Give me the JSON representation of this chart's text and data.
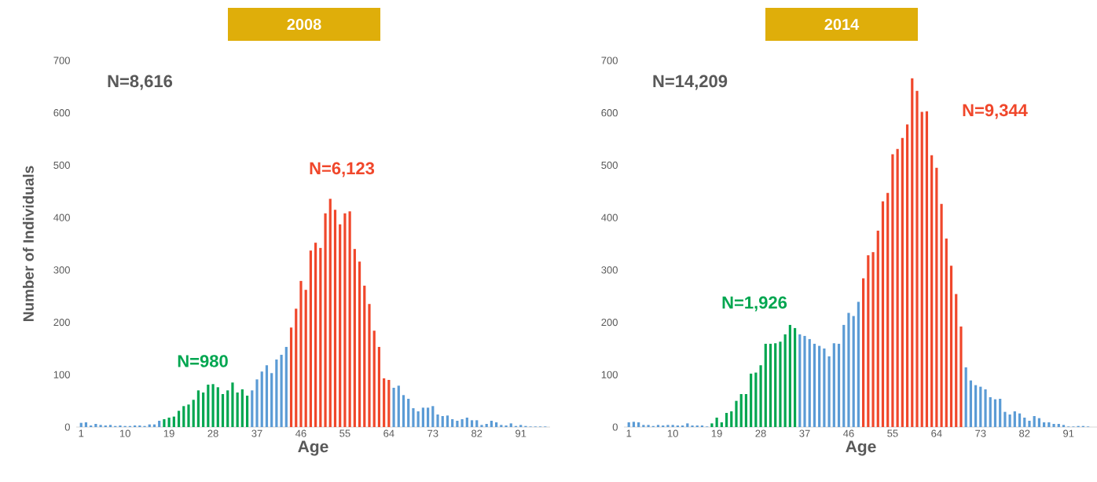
{
  "chart_data": [
    {
      "type": "bar",
      "title": "2008",
      "xlabel": "Age",
      "ylabel": "Number of Individuals",
      "xlim": [
        0,
        97
      ],
      "xticks": [
        1,
        10,
        19,
        28,
        37,
        46,
        55,
        64,
        73,
        82,
        91
      ],
      "ylim": [
        0,
        700
      ],
      "yticks": [
        0,
        100,
        200,
        300,
        400,
        500,
        600,
        700
      ],
      "annotations": [
        "N=8,616",
        "N=6,123",
        "N=980"
      ],
      "series": [
        {
          "color": "#5b9bd5",
          "x": [
            1,
            2,
            3,
            4,
            5,
            6,
            7,
            8,
            9,
            10,
            11,
            12,
            13,
            14,
            15,
            16,
            17,
            36,
            37,
            38,
            39,
            40,
            41,
            42,
            43,
            65,
            66,
            67,
            68,
            69,
            70,
            71,
            72,
            73,
            74,
            75,
            76,
            77,
            78,
            79,
            80,
            81,
            82,
            83,
            84,
            85,
            86,
            87,
            88,
            89,
            90,
            91,
            92,
            93,
            94,
            95,
            96
          ],
          "values": [
            8,
            9,
            3,
            6,
            4,
            3,
            4,
            2,
            3,
            2,
            2,
            3,
            3,
            2,
            5,
            5,
            12,
            70,
            91,
            106,
            118,
            103,
            129,
            138,
            153,
            75,
            79,
            61,
            54,
            36,
            30,
            37,
            37,
            40,
            24,
            21,
            22,
            15,
            12,
            15,
            18,
            13,
            13,
            4,
            6,
            12,
            9,
            4,
            3,
            7,
            2,
            4,
            2,
            1,
            1,
            1,
            1
          ]
        },
        {
          "color": "#00a650",
          "x": [
            18,
            19,
            20,
            21,
            22,
            23,
            24,
            25,
            26,
            27,
            28,
            29,
            30,
            31,
            32,
            33,
            34,
            35
          ],
          "values": [
            15,
            18,
            20,
            31,
            40,
            43,
            52,
            70,
            66,
            81,
            82,
            76,
            63,
            70,
            85,
            66,
            72,
            60
          ]
        },
        {
          "color": "#f0472b",
          "x": [
            44,
            45,
            46,
            47,
            48,
            49,
            50,
            51,
            52,
            53,
            54,
            55,
            56,
            57,
            58,
            59,
            60,
            61,
            62,
            63,
            64
          ],
          "values": [
            190,
            226,
            279,
            262,
            337,
            352,
            342,
            408,
            436,
            415,
            387,
            408,
            412,
            340,
            316,
            270,
            235,
            184,
            153,
            93,
            90
          ]
        }
      ]
    },
    {
      "type": "bar",
      "title": "2014",
      "xlabel": "Age",
      "xlim": [
        0,
        97
      ],
      "xticks": [
        1,
        10,
        19,
        28,
        37,
        46,
        55,
        64,
        73,
        82,
        91
      ],
      "ylim": [
        0,
        700
      ],
      "yticks": [
        0,
        100,
        200,
        300,
        400,
        500,
        600,
        700
      ],
      "annotations": [
        "N=14,209",
        "N=9,344",
        "N=1,926"
      ],
      "series": [
        {
          "color": "#5b9bd5",
          "x": [
            1,
            2,
            3,
            4,
            5,
            6,
            7,
            8,
            9,
            10,
            11,
            12,
            13,
            14,
            15,
            16,
            17,
            36,
            37,
            38,
            39,
            40,
            41,
            42,
            43,
            44,
            45,
            46,
            47,
            48,
            70,
            71,
            72,
            73,
            74,
            75,
            76,
            77,
            78,
            79,
            80,
            81,
            82,
            83,
            84,
            85,
            86,
            87,
            88,
            89,
            90,
            91,
            92,
            93,
            94,
            95
          ],
          "values": [
            9,
            10,
            9,
            4,
            4,
            2,
            4,
            3,
            4,
            4,
            3,
            3,
            7,
            3,
            3,
            3,
            1,
            177,
            174,
            168,
            159,
            155,
            150,
            135,
            160,
            159,
            195,
            218,
            212,
            239,
            114,
            89,
            80,
            77,
            72,
            57,
            53,
            54,
            29,
            24,
            30,
            26,
            18,
            12,
            21,
            17,
            9,
            9,
            6,
            6,
            4,
            1,
            1,
            2,
            2,
            1
          ]
        },
        {
          "color": "#00a650",
          "x": [
            18,
            19,
            20,
            21,
            22,
            23,
            24,
            25,
            26,
            27,
            28,
            29,
            30,
            31,
            32,
            33,
            34,
            35
          ],
          "values": [
            7,
            18,
            9,
            27,
            30,
            50,
            63,
            63,
            102,
            104,
            118,
            159,
            159,
            160,
            163,
            177,
            195,
            189
          ]
        },
        {
          "color": "#f0472b",
          "x": [
            49,
            50,
            51,
            52,
            53,
            54,
            55,
            56,
            57,
            58,
            59,
            60,
            61,
            62,
            63,
            64,
            65,
            66,
            67,
            68,
            69
          ],
          "values": [
            284,
            328,
            334,
            375,
            431,
            447,
            521,
            531,
            552,
            578,
            666,
            642,
            602,
            603,
            519,
            495,
            426,
            360,
            308,
            254,
            192
          ]
        }
      ]
    }
  ]
}
